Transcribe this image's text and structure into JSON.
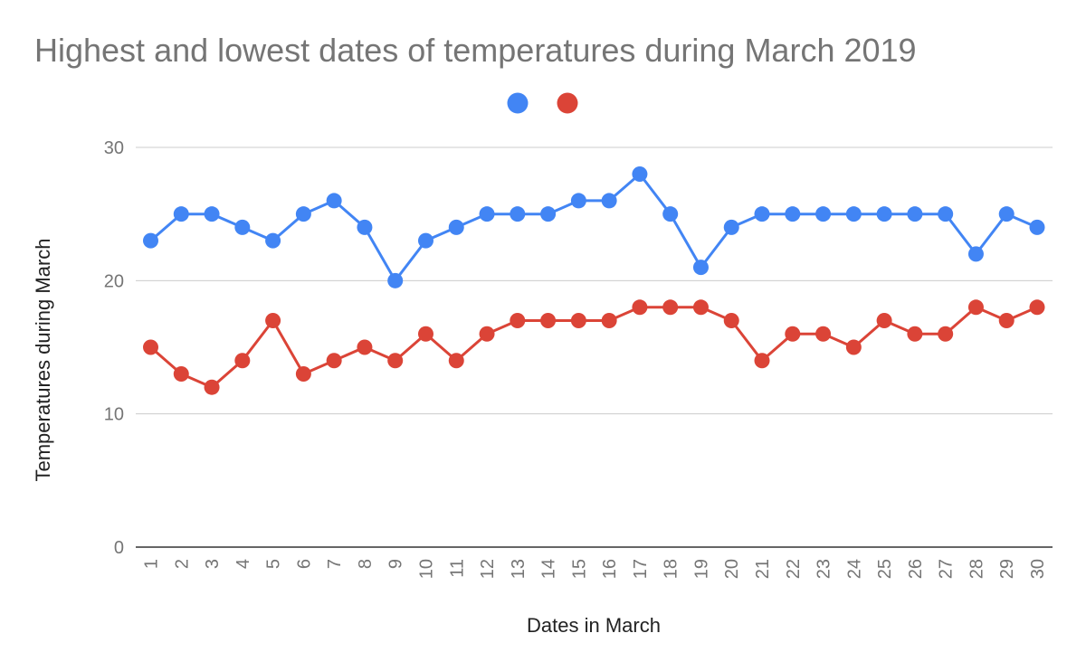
{
  "chart_data": {
    "type": "line",
    "title": "Highest and lowest dates of temperatures during March 2019",
    "xlabel": "Dates in March",
    "ylabel": "Temperatures during March",
    "categories": [
      "1",
      "2",
      "3",
      "4",
      "5",
      "6",
      "7",
      "8",
      "9",
      "10",
      "11",
      "12",
      "13",
      "14",
      "15",
      "16",
      "17",
      "18",
      "19",
      "20",
      "21",
      "22",
      "23",
      "24",
      "25",
      "26",
      "27",
      "28",
      "29",
      "30"
    ],
    "ylim": [
      0,
      30
    ],
    "yticks": [
      0,
      10,
      20,
      30
    ],
    "grid": true,
    "legend": "top-center",
    "series": [
      {
        "color": "#4285f4",
        "values": [
          23,
          25,
          25,
          24,
          23,
          25,
          26,
          24,
          20,
          23,
          24,
          25,
          25,
          25,
          26,
          26,
          28,
          25,
          21,
          24,
          25,
          25,
          25,
          25,
          25,
          25,
          25,
          22,
          25,
          24
        ]
      },
      {
        "color": "#db4437",
        "values": [
          15,
          13,
          12,
          14,
          17,
          13,
          14,
          15,
          14,
          16,
          14,
          16,
          17,
          17,
          17,
          17,
          18,
          18,
          18,
          17,
          14,
          16,
          16,
          15,
          17,
          16,
          16,
          18,
          17,
          18
        ]
      }
    ]
  }
}
